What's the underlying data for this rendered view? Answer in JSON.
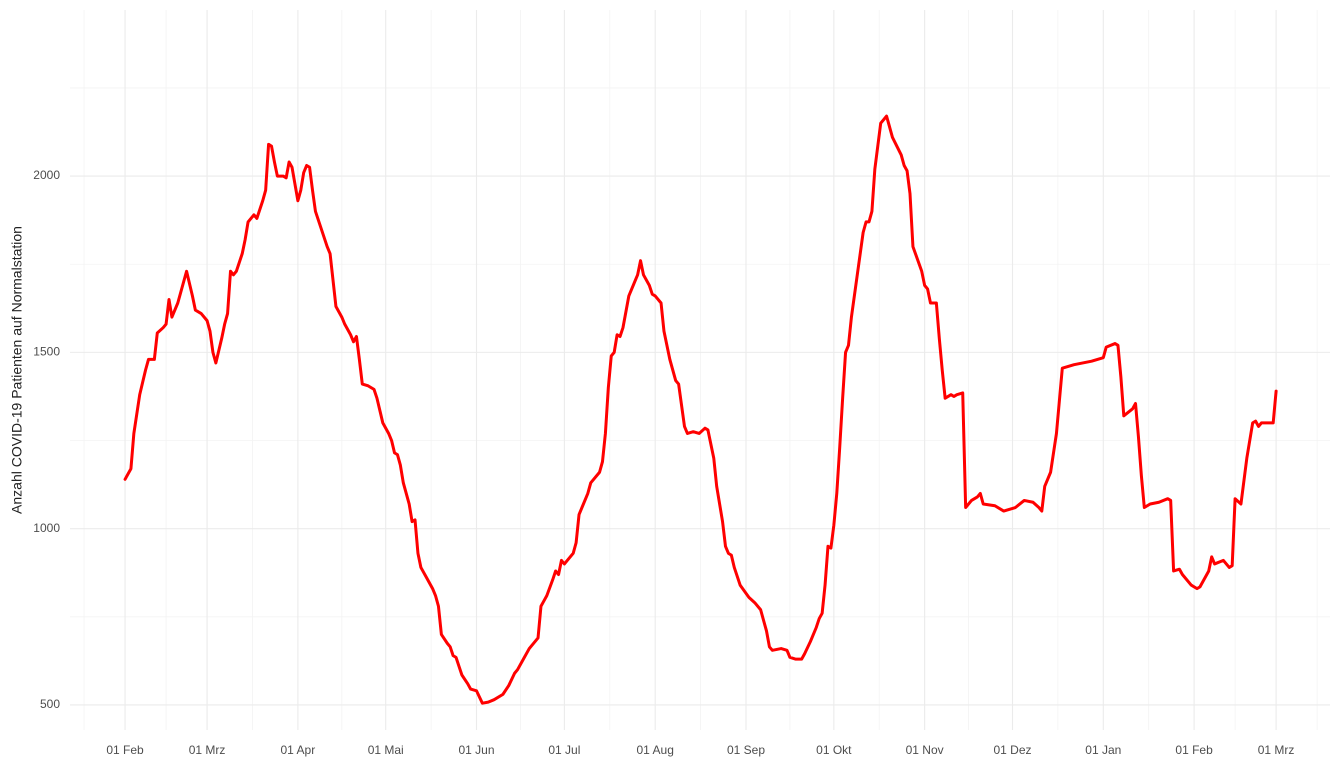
{
  "chart_data": {
    "type": "line",
    "y_label": "Anzahl COVID-19 Patienten auf Normalstation",
    "color": "#ff0000",
    "grid": true,
    "xlim": [
      -18.8,
      411.4
    ],
    "ylim": [
      429,
      2471
    ],
    "yticks": [
      500,
      1000,
      1500,
      2000
    ],
    "xticks": [
      {
        "value": 0,
        "label": "01 Feb"
      },
      {
        "value": 28,
        "label": "01 Mrz"
      },
      {
        "value": 59,
        "label": "01 Apr"
      },
      {
        "value": 89,
        "label": "01 Mai"
      },
      {
        "value": 120,
        "label": "01 Jun"
      },
      {
        "value": 150,
        "label": "01 Jul"
      },
      {
        "value": 181,
        "label": "01 Aug"
      },
      {
        "value": 212,
        "label": "01 Sep"
      },
      {
        "value": 242,
        "label": "01 Okt"
      },
      {
        "value": 273,
        "label": "01 Nov"
      },
      {
        "value": 303,
        "label": "01 Dez"
      },
      {
        "value": 334,
        "label": "01 Jan"
      },
      {
        "value": 365,
        "label": "01 Feb"
      },
      {
        "value": 393,
        "label": "01 Mrz"
      }
    ],
    "x": [
      0,
      2,
      3,
      5,
      7,
      8,
      10,
      11,
      13,
      14,
      15,
      16,
      18,
      21,
      23,
      24,
      26,
      28,
      29,
      30,
      31,
      33,
      34,
      35,
      36,
      37,
      38,
      40,
      41,
      42,
      44,
      45,
      47,
      48,
      49,
      50,
      51,
      52,
      54,
      55,
      56,
      57,
      59,
      60,
      61,
      62,
      63,
      64,
      65,
      67,
      69,
      70,
      72,
      74,
      75,
      77,
      78,
      79,
      80,
      81,
      83,
      85,
      86,
      88,
      90,
      91,
      92,
      93,
      94,
      95,
      97,
      98,
      99,
      100,
      101,
      103,
      105,
      106,
      107,
      108,
      110,
      111,
      112,
      113,
      114,
      115,
      117,
      118,
      120,
      122,
      124,
      126,
      129,
      131,
      133,
      134,
      136,
      138,
      141,
      142,
      143,
      144,
      146,
      147,
      148,
      149,
      150,
      153,
      154,
      155,
      156,
      158,
      159,
      162,
      163,
      164,
      165,
      166,
      167,
      168,
      169,
      170,
      172,
      175,
      176,
      177,
      179,
      180,
      181,
      183,
      184,
      185,
      186,
      188,
      189,
      191,
      192,
      194,
      196,
      198,
      199,
      201,
      202,
      204,
      205,
      206,
      207,
      208,
      210,
      213,
      215,
      217,
      218,
      219,
      220,
      221,
      224,
      226,
      227,
      229,
      231,
      232,
      234,
      236,
      237,
      238,
      239,
      240,
      241,
      242,
      243,
      244,
      245,
      246,
      247,
      248,
      250,
      252,
      253,
      254,
      255,
      256,
      258,
      260,
      261,
      262,
      265,
      266,
      267,
      268,
      269,
      272,
      273,
      274,
      275,
      277,
      278,
      279,
      280,
      282,
      283,
      284,
      286,
      287,
      289,
      291,
      292,
      293,
      297,
      300,
      302,
      304,
      307,
      310,
      312,
      313,
      314,
      316,
      318,
      320,
      324,
      330,
      334,
      335,
      338,
      339,
      340,
      341,
      344,
      345,
      346,
      347,
      348,
      350,
      353,
      356,
      357,
      358,
      360,
      361,
      364,
      366,
      367,
      370,
      371,
      372,
      375,
      377,
      378,
      379,
      381,
      383,
      385,
      386,
      387,
      388,
      391,
      392,
      393
    ],
    "values": [
      1140,
      1170,
      1270,
      1380,
      1450,
      1480,
      1480,
      1555,
      1570,
      1580,
      1650,
      1600,
      1640,
      1730,
      1660,
      1620,
      1610,
      1590,
      1560,
      1500,
      1470,
      1540,
      1580,
      1610,
      1730,
      1720,
      1730,
      1780,
      1820,
      1870,
      1890,
      1880,
      1930,
      1960,
      2090,
      2085,
      2040,
      2000,
      2000,
      1995,
      2040,
      2025,
      1930,
      1960,
      2010,
      2030,
      2025,
      1960,
      1900,
      1850,
      1800,
      1780,
      1630,
      1600,
      1580,
      1550,
      1530,
      1545,
      1480,
      1410,
      1405,
      1395,
      1370,
      1300,
      1270,
      1250,
      1215,
      1210,
      1180,
      1130,
      1070,
      1020,
      1025,
      930,
      890,
      860,
      830,
      810,
      780,
      700,
      675,
      665,
      640,
      635,
      610,
      585,
      560,
      545,
      540,
      505,
      508,
      515,
      530,
      555,
      590,
      600,
      630,
      660,
      690,
      780,
      795,
      810,
      855,
      880,
      870,
      910,
      900,
      930,
      960,
      1040,
      1060,
      1100,
      1130,
      1160,
      1190,
      1270,
      1400,
      1490,
      1500,
      1550,
      1545,
      1570,
      1660,
      1720,
      1760,
      1720,
      1690,
      1665,
      1660,
      1640,
      1560,
      1520,
      1480,
      1420,
      1410,
      1290,
      1270,
      1275,
      1270,
      1285,
      1280,
      1200,
      1120,
      1020,
      950,
      930,
      925,
      890,
      840,
      805,
      790,
      770,
      740,
      710,
      665,
      655,
      660,
      655,
      635,
      630,
      630,
      645,
      680,
      720,
      745,
      760,
      840,
      950,
      945,
      1010,
      1100,
      1230,
      1370,
      1500,
      1520,
      1600,
      1720,
      1840,
      1870,
      1870,
      1900,
      2020,
      2150,
      2170,
      2140,
      2110,
      2060,
      2030,
      2015,
      1950,
      1800,
      1730,
      1690,
      1680,
      1640,
      1640,
      1540,
      1450,
      1370,
      1380,
      1375,
      1380,
      1385,
      1060,
      1080,
      1090,
      1100,
      1070,
      1065,
      1050,
      1055,
      1060,
      1080,
      1075,
      1060,
      1050,
      1120,
      1160,
      1270,
      1455,
      1465,
      1475,
      1485,
      1515,
      1525,
      1520,
      1430,
      1320,
      1340,
      1355,
      1260,
      1150,
      1060,
      1070,
      1075,
      1085,
      1080,
      880,
      885,
      870,
      840,
      830,
      835,
      880,
      920,
      900,
      910,
      890,
      895,
      1085,
      1070,
      1200,
      1300,
      1305,
      1290,
      1300,
      1300,
      1300,
      1390
    ]
  }
}
